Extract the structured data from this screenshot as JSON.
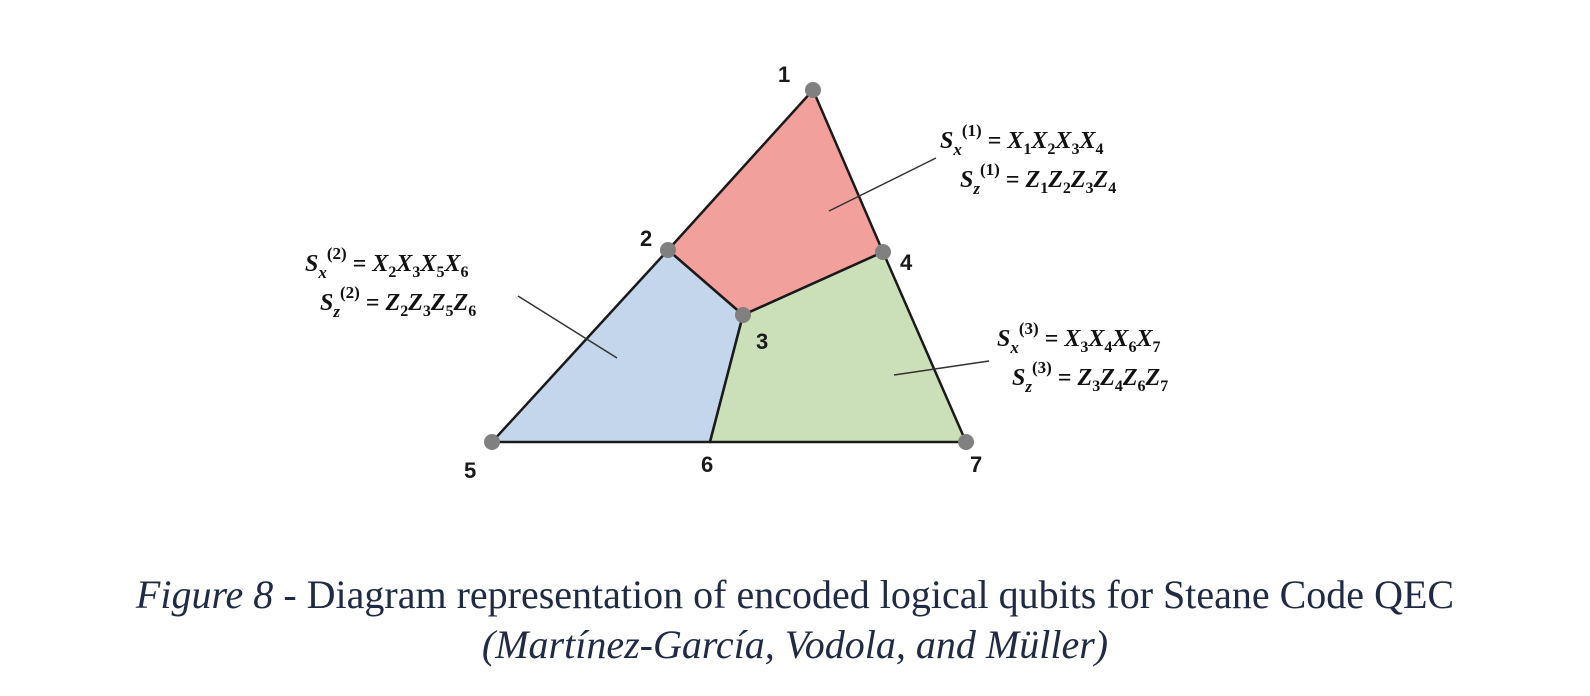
{
  "diagram": {
    "nodes": [
      {
        "id": "1",
        "label": "1"
      },
      {
        "id": "2",
        "label": "2"
      },
      {
        "id": "3",
        "label": "3"
      },
      {
        "id": "4",
        "label": "4"
      },
      {
        "id": "5",
        "label": "5"
      },
      {
        "id": "6",
        "label": "6"
      },
      {
        "id": "7",
        "label": "7"
      }
    ],
    "faces": [
      {
        "id": "face-1",
        "vertices": [
          "1",
          "2",
          "3",
          "4"
        ],
        "color": "#F2A09C"
      },
      {
        "id": "face-2",
        "vertices": [
          "2",
          "3",
          "6",
          "5"
        ],
        "color": "#C3D6EC"
      },
      {
        "id": "face-3",
        "vertices": [
          "3",
          "4",
          "7",
          "6"
        ],
        "color": "#CBDFB9"
      }
    ],
    "node_color": "#808080",
    "edge_color": "#1a1a1a",
    "stabilizers": [
      {
        "face": "face-1",
        "sx": "S_x^(1) = X1X2X3X4",
        "sz": "S_z^(1) = Z1Z2Z3Z4"
      },
      {
        "face": "face-2",
        "sx": "S_x^(2) = X2X3X5X6",
        "sz": "S_z^(2) = Z2Z3Z5Z6"
      },
      {
        "face": "face-3",
        "sx": "S_x^(3) = X3X4X6X7",
        "sz": "S_z^(3) = Z3Z4Z6Z7"
      }
    ]
  },
  "caption": {
    "figure_label": "Figure 8",
    "separator": " - ",
    "text": "Diagram representation of encoded logical qubits for Steane Code QEC",
    "citation": "(Martínez-García, Vodola, and Müller)",
    "color": "#1F2A44"
  }
}
